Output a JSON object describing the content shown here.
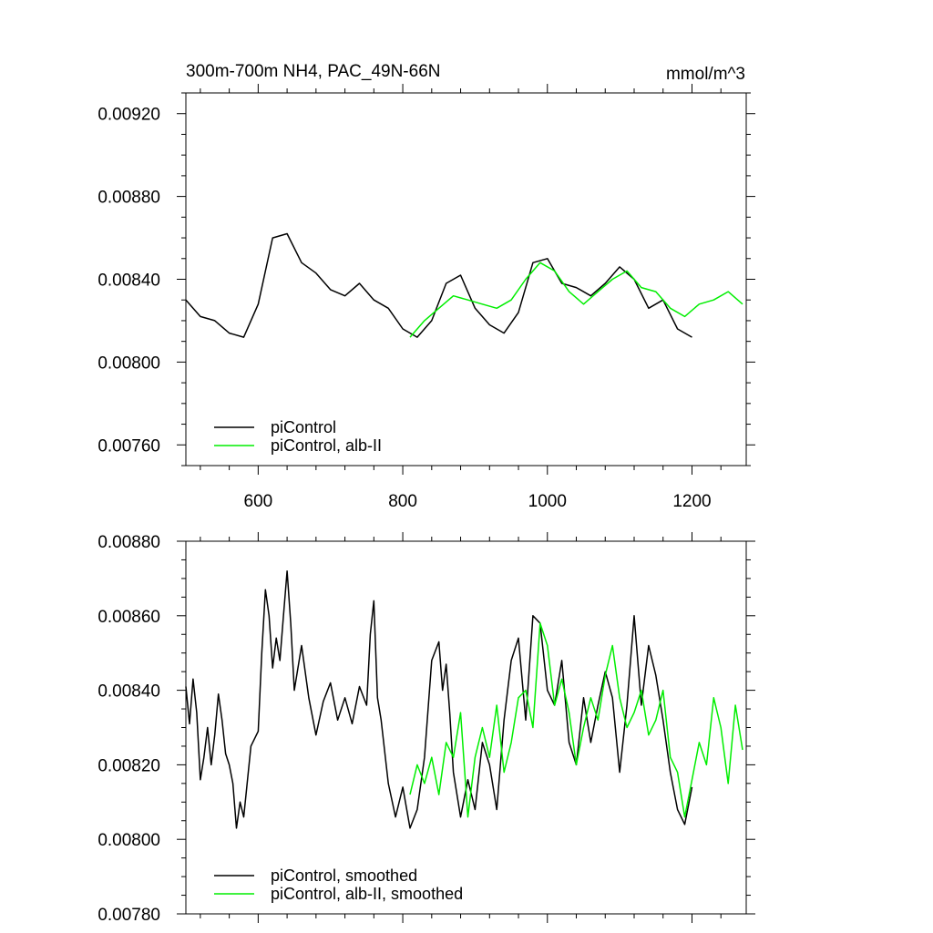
{
  "chart_data": [
    {
      "type": "line",
      "title": "300m-700m NH4, PAC_49N-66N",
      "units": "mmol/m^3",
      "xlim": [
        500,
        1275
      ],
      "ylim": [
        0.0075,
        0.0093
      ],
      "xticks": [
        600,
        800,
        1000,
        1200
      ],
      "x_tick_labels": [
        "600",
        "800",
        "1000",
        "1200"
      ],
      "yticks": [
        0.0076,
        0.008,
        0.0084,
        0.0088,
        0.0092
      ],
      "y_tick_labels": [
        "0.00760",
        "0.00800",
        "0.00840",
        "0.00880",
        "0.00920"
      ],
      "legend_location": "bottom-left",
      "series": [
        {
          "name": "piControl",
          "color": "#000000",
          "x": [
            500,
            520,
            540,
            560,
            580,
            600,
            620,
            640,
            660,
            680,
            700,
            720,
            740,
            760,
            780,
            800,
            820,
            840,
            860,
            880,
            900,
            920,
            940,
            960,
            980,
            1000,
            1020,
            1040,
            1060,
            1080,
            1100,
            1120,
            1140,
            1160,
            1180,
            1200
          ],
          "y": [
            0.0083,
            0.00822,
            0.0082,
            0.00814,
            0.00812,
            0.00828,
            0.0086,
            0.00862,
            0.00848,
            0.00843,
            0.00835,
            0.00832,
            0.00838,
            0.0083,
            0.00826,
            0.00816,
            0.00812,
            0.0082,
            0.00838,
            0.00842,
            0.00826,
            0.00818,
            0.00814,
            0.00824,
            0.00848,
            0.0085,
            0.00838,
            0.00836,
            0.00832,
            0.00838,
            0.00846,
            0.0084,
            0.00826,
            0.0083,
            0.00816,
            0.00812
          ]
        },
        {
          "name": "piControl, alb-II",
          "color": "#00ee00",
          "x": [
            810,
            830,
            850,
            870,
            890,
            910,
            930,
            950,
            970,
            990,
            1010,
            1030,
            1050,
            1070,
            1090,
            1110,
            1130,
            1150,
            1170,
            1190,
            1210,
            1230,
            1250,
            1270
          ],
          "y": [
            0.00812,
            0.0082,
            0.00826,
            0.00832,
            0.0083,
            0.00828,
            0.00826,
            0.0083,
            0.0084,
            0.00848,
            0.00844,
            0.00834,
            0.00828,
            0.00834,
            0.0084,
            0.00844,
            0.00836,
            0.00834,
            0.00826,
            0.00822,
            0.00828,
            0.0083,
            0.00834,
            0.00828
          ]
        }
      ]
    },
    {
      "type": "line",
      "xlim": [
        500,
        1275
      ],
      "ylim": [
        0.0078,
        0.0088
      ],
      "xticks": [
        600,
        800,
        1000,
        1200
      ],
      "yticks": [
        0.0078,
        0.008,
        0.0082,
        0.0084,
        0.0086,
        0.0088
      ],
      "y_tick_labels": [
        "0.00780",
        "0.00800",
        "0.00820",
        "0.00840",
        "0.00860",
        "0.00880"
      ],
      "legend_location": "bottom-left",
      "series": [
        {
          "name": "piControl, smoothed",
          "color": "#000000",
          "x": [
            500,
            505,
            510,
            515,
            520,
            525,
            530,
            535,
            540,
            545,
            550,
            555,
            560,
            565,
            570,
            575,
            580,
            590,
            600,
            605,
            610,
            615,
            620,
            625,
            630,
            635,
            640,
            645,
            650,
            660,
            670,
            680,
            690,
            700,
            710,
            720,
            730,
            740,
            750,
            755,
            760,
            765,
            770,
            780,
            790,
            800,
            810,
            820,
            830,
            840,
            850,
            855,
            860,
            865,
            870,
            880,
            890,
            900,
            910,
            920,
            930,
            940,
            950,
            960,
            970,
            980,
            990,
            1000,
            1010,
            1020,
            1030,
            1040,
            1050,
            1060,
            1070,
            1080,
            1090,
            1100,
            1110,
            1120,
            1130,
            1140,
            1150,
            1160,
            1170,
            1180,
            1190,
            1200
          ],
          "y": [
            0.00841,
            0.00831,
            0.00843,
            0.00834,
            0.00816,
            0.00822,
            0.0083,
            0.0082,
            0.00828,
            0.00839,
            0.00832,
            0.00823,
            0.0082,
            0.00815,
            0.00803,
            0.0081,
            0.00806,
            0.00825,
            0.00829,
            0.0085,
            0.00867,
            0.0086,
            0.00846,
            0.00854,
            0.00848,
            0.0086,
            0.00872,
            0.00858,
            0.0084,
            0.00852,
            0.00838,
            0.00828,
            0.00837,
            0.00842,
            0.00832,
            0.00838,
            0.00831,
            0.00841,
            0.00836,
            0.00855,
            0.00864,
            0.00838,
            0.00832,
            0.00815,
            0.00806,
            0.00814,
            0.00803,
            0.00808,
            0.00822,
            0.00848,
            0.00853,
            0.0084,
            0.00847,
            0.00834,
            0.00818,
            0.00806,
            0.00816,
            0.00808,
            0.00826,
            0.0082,
            0.00808,
            0.00832,
            0.00848,
            0.00854,
            0.00832,
            0.0086,
            0.00858,
            0.0084,
            0.00836,
            0.00848,
            0.00826,
            0.0082,
            0.00838,
            0.00826,
            0.00836,
            0.00845,
            0.00838,
            0.00818,
            0.00836,
            0.0086,
            0.00836,
            0.00852,
            0.00844,
            0.00832,
            0.00818,
            0.00808,
            0.00804,
            0.00814
          ]
        },
        {
          "name": "piControl, alb-II, smoothed",
          "color": "#00ee00",
          "x": [
            810,
            820,
            830,
            840,
            850,
            860,
            870,
            880,
            890,
            900,
            910,
            920,
            930,
            940,
            950,
            960,
            970,
            980,
            990,
            1000,
            1010,
            1020,
            1030,
            1040,
            1050,
            1060,
            1070,
            1080,
            1090,
            1100,
            1110,
            1120,
            1130,
            1140,
            1150,
            1160,
            1170,
            1180,
            1190,
            1200,
            1210,
            1220,
            1230,
            1240,
            1250,
            1260,
            1270
          ],
          "y": [
            0.00812,
            0.0082,
            0.00815,
            0.00822,
            0.00812,
            0.00826,
            0.00822,
            0.00834,
            0.00806,
            0.00822,
            0.0083,
            0.00822,
            0.00836,
            0.00818,
            0.00826,
            0.00838,
            0.0084,
            0.0083,
            0.00858,
            0.00852,
            0.00836,
            0.00843,
            0.00834,
            0.0082,
            0.0083,
            0.00838,
            0.00832,
            0.00844,
            0.00852,
            0.00838,
            0.0083,
            0.00834,
            0.0084,
            0.00828,
            0.00832,
            0.0084,
            0.00822,
            0.00818,
            0.00806,
            0.00816,
            0.00826,
            0.0082,
            0.00838,
            0.0083,
            0.00815,
            0.00836,
            0.00824
          ]
        }
      ]
    }
  ]
}
